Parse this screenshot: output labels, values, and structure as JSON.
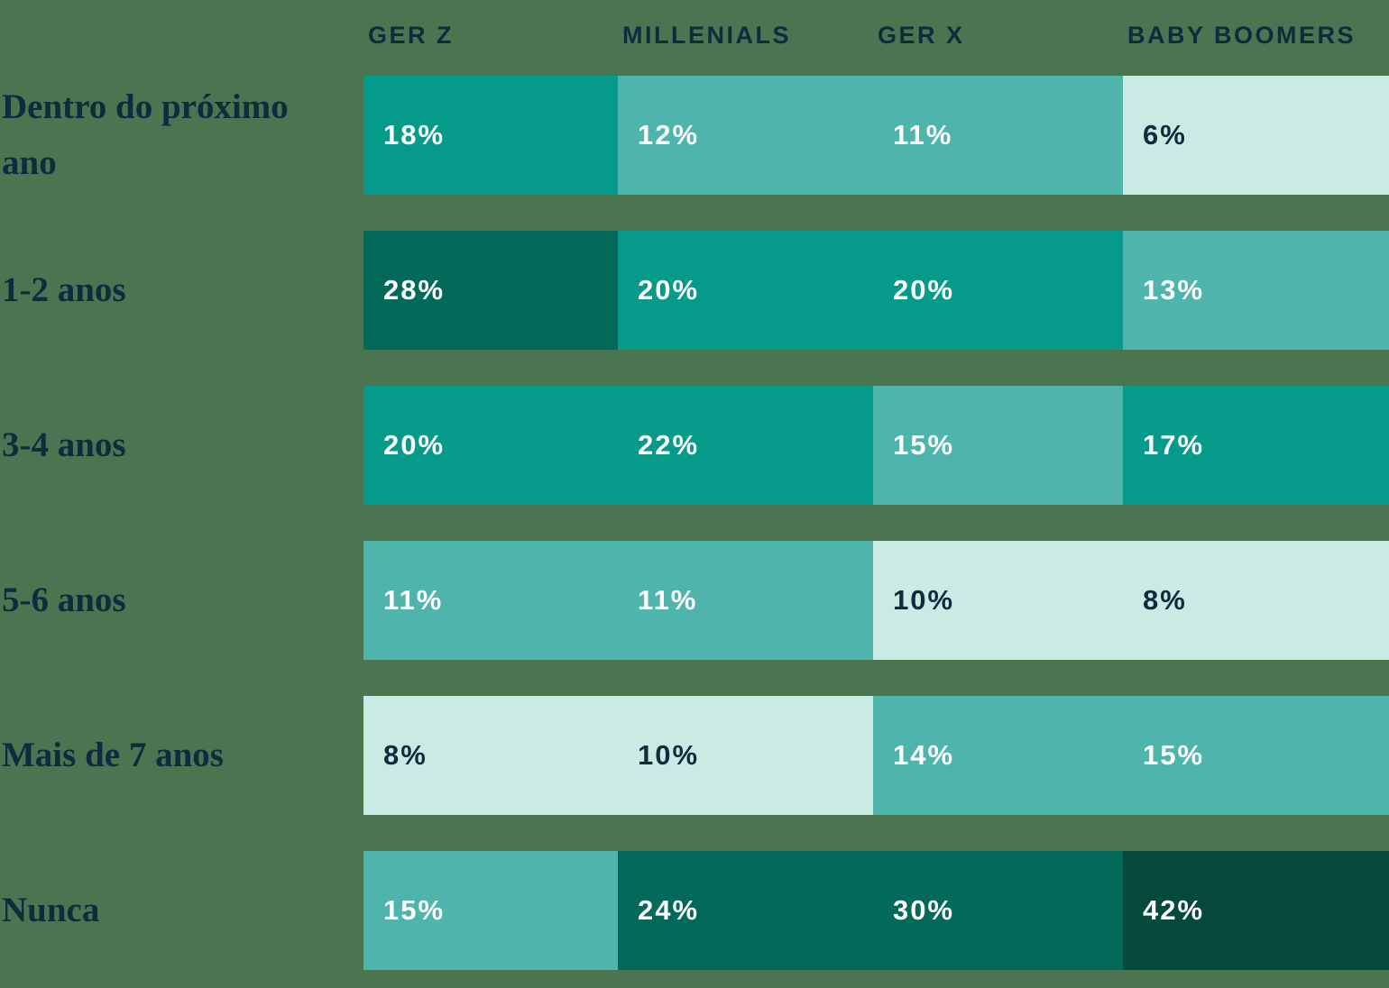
{
  "chart_data": {
    "type": "heatmap",
    "title": "",
    "unit": "%",
    "columns": [
      "GER Z",
      "MILLENIALS",
      "GER X",
      "BABY BOOMERS"
    ],
    "rows": [
      "Dentro do próximo ano",
      "1-2 anos",
      "3-4 anos",
      "5-6 anos",
      "Mais de 7 anos",
      "Nunca"
    ],
    "values": [
      [
        18,
        12,
        11,
        6
      ],
      [
        28,
        20,
        20,
        13
      ],
      [
        20,
        22,
        15,
        17
      ],
      [
        11,
        11,
        10,
        8
      ],
      [
        8,
        10,
        14,
        15
      ],
      [
        15,
        24,
        30,
        42
      ]
    ],
    "legend": "none",
    "grid": "off"
  },
  "palette": {
    "background": "#4A7550",
    "header_text": "#0F2B3D",
    "row_label_text": "#0F2B3D",
    "scale": [
      {
        "max": 10,
        "bg": "#C9EBE4",
        "fg": "#0F2B3D"
      },
      {
        "max": 16,
        "bg": "#4FB4AB",
        "fg": "#FFFFFF"
      },
      {
        "max": 23,
        "bg": "#069A8B",
        "fg": "#FFFFFF"
      },
      {
        "max": 40,
        "bg": "#05695A",
        "fg": "#FFFFFF"
      },
      {
        "max": 100,
        "bg": "#05483C",
        "fg": "#FFFFFF"
      }
    ]
  }
}
